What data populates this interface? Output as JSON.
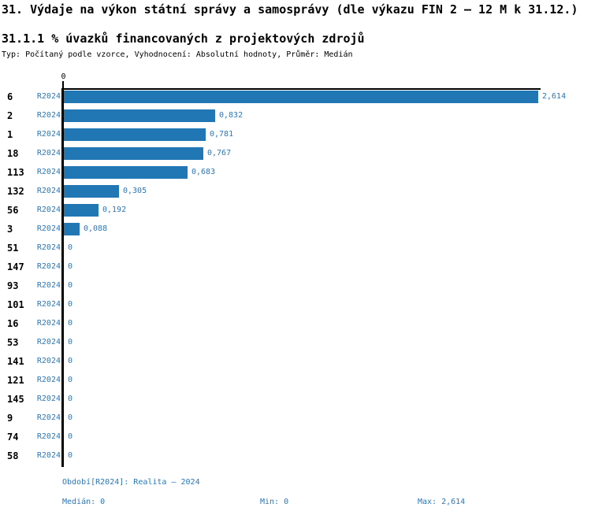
{
  "title": "31. Výdaje na výkon státní správy a samosprávy (dle výkazu FIN 2 – 12 M k 31.12.)",
  "subtitle": "31.1.1 % úvazků financovaných z projektových zdrojů",
  "meta_line": "Typ: Počítaný podle vzorce, Vyhodnocení: Absolutní hodnoty, Průměr: Medián",
  "colors": {
    "bar": "#2177b4",
    "blue_text": "#2878be",
    "axis": "#000000"
  },
  "chart_data": {
    "type": "bar",
    "orientation": "horizontal",
    "title": "31.1.1 % úvazků financovaných z projektových zdrojů",
    "categories": [
      "6",
      "2",
      "1",
      "18",
      "113",
      "132",
      "56",
      "3",
      "51",
      "147",
      "93",
      "101",
      "16",
      "53",
      "141",
      "121",
      "145",
      "9",
      "74",
      "58"
    ],
    "series": [
      {
        "name": "R2024",
        "values": [
          2.614,
          0.832,
          0.781,
          0.767,
          0.683,
          0.305,
          0.192,
          0.088,
          0,
          0,
          0,
          0,
          0,
          0,
          0,
          0,
          0,
          0,
          0,
          0
        ]
      }
    ],
    "value_labels": [
      "2,614",
      "0,832",
      "0,781",
      "0,767",
      "0,683",
      "0,305",
      "0,192",
      "0,088",
      "0",
      "0",
      "0",
      "0",
      "0",
      "0",
      "0",
      "0",
      "0",
      "0",
      "0",
      "0"
    ],
    "xlim": [
      0,
      2.614
    ],
    "x_ticks": [
      "0"
    ],
    "grid": false,
    "legend": "none",
    "stats": {
      "median": 0,
      "min": 0,
      "max": 2.614
    }
  },
  "axis": {
    "zero_tick": "0"
  },
  "footer": {
    "period_label": "Období[R2024]: Realita – 2024",
    "median_label": "Medián: 0",
    "min_label": "Min: 0",
    "max_label": "Max: 2,614"
  }
}
